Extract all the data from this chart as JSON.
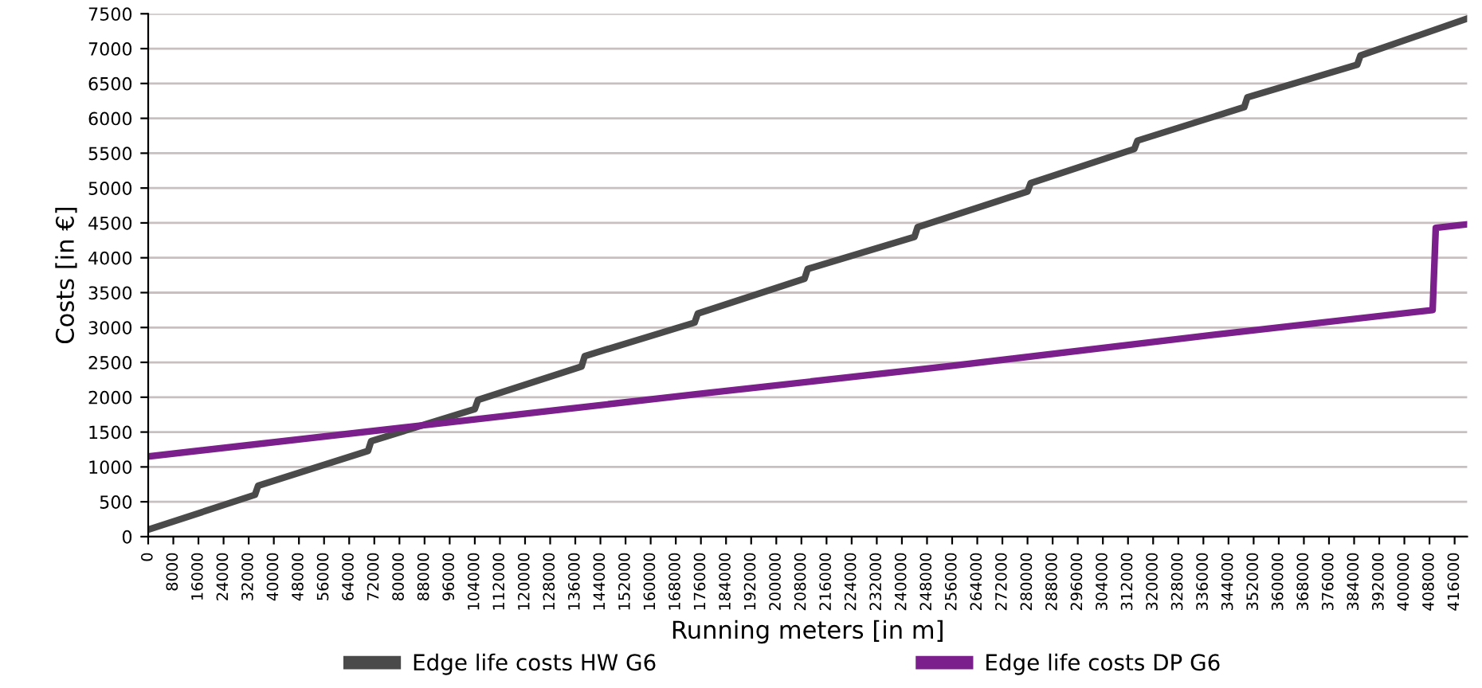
{
  "chart_data": {
    "type": "line",
    "xlabel": "Running meters [in m]",
    "ylabel": "Costs [in €]",
    "xlim": [
      0,
      420000
    ],
    "xticks": [
      0,
      8000,
      16000,
      24000,
      32000,
      40000,
      48000,
      56000,
      64000,
      72000,
      80000,
      88000,
      96000,
      104000,
      112000,
      120000,
      128000,
      136000,
      144000,
      152000,
      160000,
      168000,
      176000,
      184000,
      192000,
      200000,
      208000,
      216000,
      224000,
      232000,
      240000,
      248000,
      256000,
      264000,
      272000,
      280000,
      288000,
      296000,
      304000,
      312000,
      320000,
      328000,
      336000,
      344000,
      352000,
      360000,
      368000,
      376000,
      384000,
      392000,
      400000,
      408000,
      416000
    ],
    "ylim": [
      0,
      7500
    ],
    "yticks": [
      0,
      500,
      1000,
      1500,
      2000,
      2500,
      3000,
      3500,
      4000,
      4500,
      5000,
      5500,
      6000,
      6500,
      7000,
      7500
    ],
    "grid": "y",
    "legend": "bottom",
    "marker": "none",
    "line_style": "solid",
    "series": [
      {
        "name": "Edge life costs HW G6",
        "color": "#4a4a4a",
        "x": [
          0,
          34000,
          35000,
          70000,
          71000,
          104000,
          105000,
          138000,
          139000,
          174000,
          175000,
          209000,
          210000,
          244000,
          245000,
          280000,
          281000,
          314000,
          315000,
          349000,
          350000,
          385000,
          386000,
          420000
        ],
        "values": [
          100,
          600,
          730,
          1230,
          1370,
          1830,
          1960,
          2440,
          2590,
          3070,
          3200,
          3700,
          3840,
          4300,
          4440,
          4950,
          5070,
          5560,
          5680,
          6160,
          6300,
          6770,
          6900,
          7430
        ]
      },
      {
        "name": "Edge life costs DP G6",
        "color": "#7b1f8c",
        "x": [
          0,
          88000,
          176000,
          256000,
          340000,
          409000,
          410000,
          420000
        ],
        "values": [
          1150,
          1600,
          2050,
          2450,
          2900,
          3250,
          4430,
          4480
        ]
      }
    ]
  }
}
